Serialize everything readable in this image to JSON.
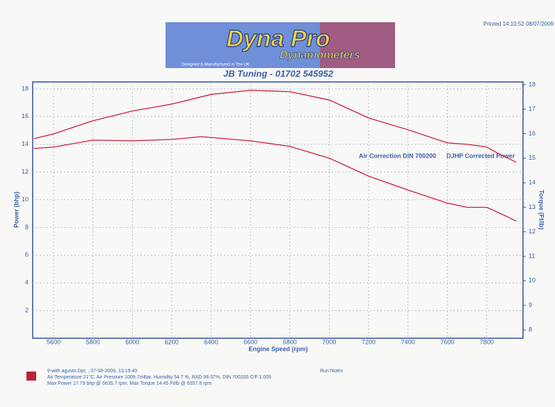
{
  "printed": "Printed 14:10:52  08/07/2009",
  "logo": {
    "title": "Dyna Pro",
    "subtitle": "Dynamometers",
    "tagline": "Designed & Manufactured in The UK"
  },
  "chart_data": {
    "type": "line",
    "title": "JB Tuning - 01702 545952",
    "x_label": "Engine Speed (rpm)",
    "y_label": "Power (bhp)",
    "y2_label": "Torque (Ft/lb)",
    "annotations": [
      "Air Correction DIN 700200",
      "DJHP Corrected Power"
    ],
    "xlim": [
      5494,
      7984
    ],
    "xticks": [
      5600,
      5800,
      6000,
      6200,
      6400,
      6600,
      6800,
      7000,
      7200,
      7400,
      7600,
      7800
    ],
    "ylim": [
      0,
      18.5
    ],
    "yticks": [
      2,
      4,
      6,
      8,
      10,
      12,
      14,
      16,
      18
    ],
    "y2lim": [
      7.66,
      18.11
    ],
    "y2ticks": [
      8,
      9,
      10,
      11,
      12,
      13,
      14,
      15,
      16,
      17,
      18
    ],
    "grid": true,
    "series": [
      {
        "color": "#d0183c",
        "x": [
          5500,
          5600,
          5800,
          6000,
          6200,
          6400,
          6600,
          6800,
          7000,
          7200,
          7400,
          7600,
          7700,
          7800,
          7850,
          7950
        ],
        "values": [
          14.4,
          14.75,
          15.7,
          16.4,
          16.9,
          17.6,
          17.9,
          17.8,
          17.2,
          15.9,
          15.05,
          14.1,
          14.0,
          13.8,
          13.4,
          12.7
        ]
      },
      {
        "color": "#d0183c",
        "x": [
          5500,
          5600,
          5800,
          6000,
          6200,
          6350,
          6600,
          6800,
          7000,
          7200,
          7400,
          7600,
          7700,
          7800,
          7900,
          7950
        ],
        "values": [
          13.7,
          13.8,
          14.3,
          14.25,
          14.35,
          14.55,
          14.25,
          13.85,
          13.0,
          11.7,
          10.7,
          9.75,
          9.45,
          9.45,
          8.8,
          8.45
        ]
      }
    ]
  },
  "footer": {
    "lines": [
      "9-with agusto.Dpr,   ,   07-08-2009,   13:19:40",
      "Air Temperature 21°C,   Air Pressure 1009.7mBar,   Humidity 54.7 %,   RAD 96.37%,   DIN 700200  C/F:1.005",
      "Max Power 17.79 bhp @ 6635.7 rpm,   Max Torque 14.45 Ft/lb @ 6357.6 rpm"
    ],
    "notes": "Run Notes"
  }
}
